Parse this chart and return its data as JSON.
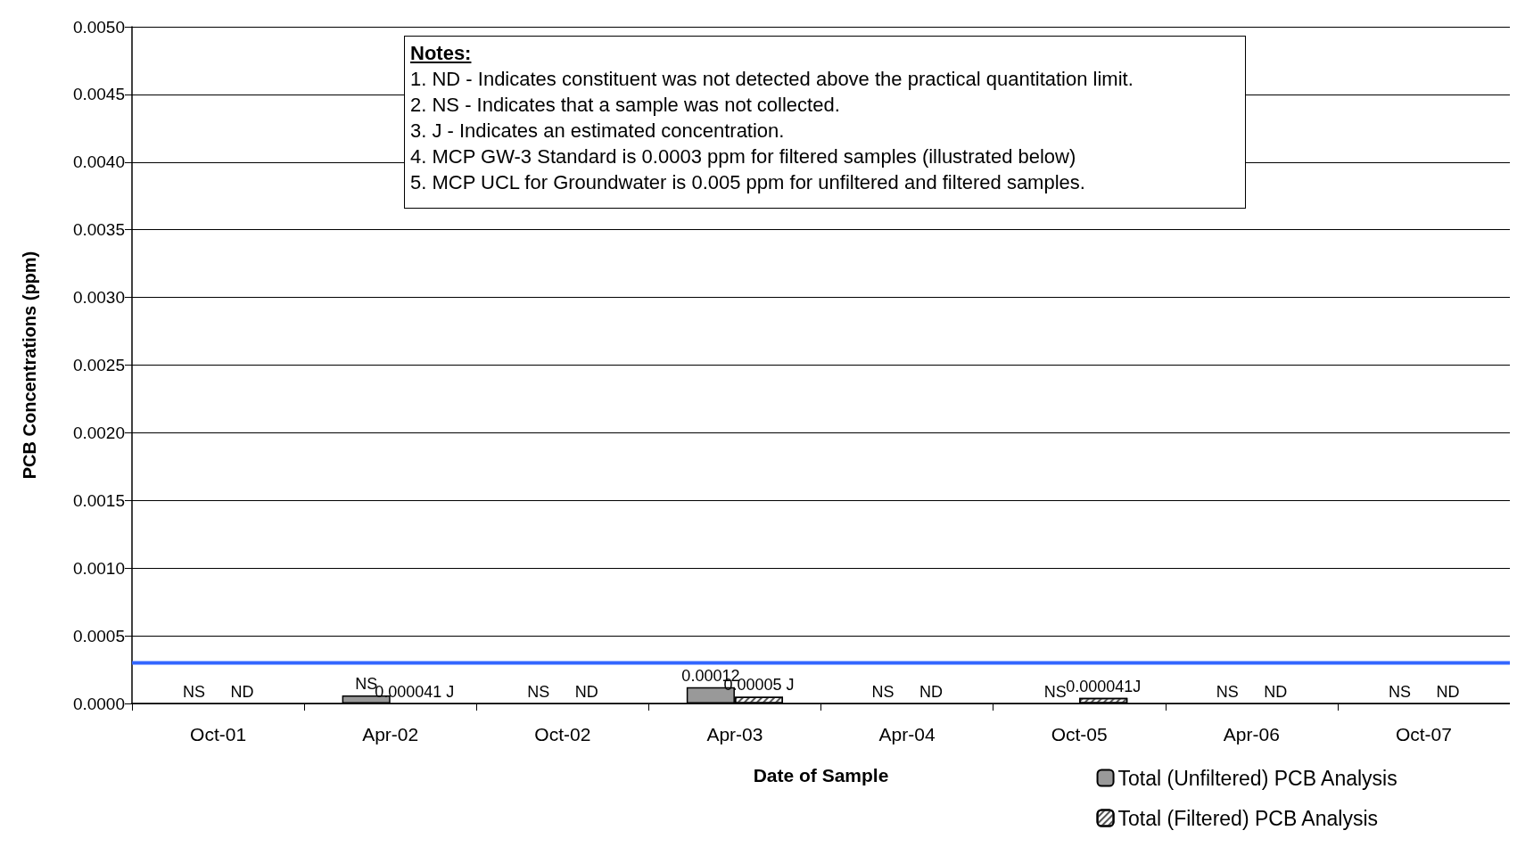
{
  "chart_data": {
    "type": "bar",
    "xlabel": "Date of Sample",
    "ylabel": "PCB Concentrations (ppm)",
    "categories": [
      "Oct-01",
      "Apr-02",
      "Oct-02",
      "Apr-03",
      "Apr-04",
      "Oct-05",
      "Apr-06",
      "Oct-07"
    ],
    "series": [
      {
        "name": "Total (Unfiltered) PCB Analysis",
        "color": "#999999",
        "values": [
          null,
          6e-05,
          null,
          0.00012,
          null,
          null,
          null,
          null
        ],
        "value_labels": [
          "NS",
          "NS",
          "NS",
          "0.00012",
          "NS",
          "NS",
          "NS",
          "NS"
        ]
      },
      {
        "name": "Total (Filtered) PCB Analysis",
        "color": "#ffffff",
        "values": [
          null,
          null,
          null,
          5e-05,
          null,
          4.1e-05,
          null,
          null
        ],
        "value_labels": [
          "ND",
          "0.000041 J",
          "ND",
          "0.00005 J",
          "ND",
          "0.000041J",
          "ND",
          "ND"
        ]
      }
    ],
    "ylim": [
      0,
      0.005
    ],
    "yticks": [
      {
        "value": 0,
        "label": "0.0000"
      },
      0.0005,
      {
        "value": 0.001,
        "label": "0.0010"
      },
      0.0015,
      {
        "value": 0.002,
        "label": "0.0020"
      },
      0.0025,
      {
        "value": 0.003,
        "label": "0.0030"
      },
      0.0035,
      {
        "value": 0.004,
        "label": "0.0040"
      },
      0.0045,
      {
        "value": 0.005,
        "label": "0.0050"
      }
    ],
    "ref_lines": [
      {
        "axis": "y",
        "value": 0.0003,
        "color": "#3366ff"
      }
    ],
    "annotations": [
      "Notes:",
      "1.  ND - Indicates constituent was not detected above the practical quantitation limit.",
      "2.  NS - Indicates that a sample was not collected.",
      "3.  J - Indicates an estimated concentration.",
      "4.  MCP GW-3 Standard is 0.0003 ppm for filtered samples (illustrated below)",
      "5.  MCP UCL for Groundwater is 0.005 ppm for unfiltered and filtered samples."
    ],
    "grid": "y",
    "legend": "bottom right"
  }
}
